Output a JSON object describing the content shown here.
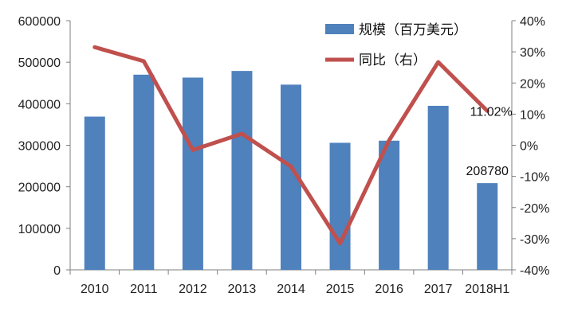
{
  "chart_data": {
    "type": "bar+line",
    "categories": [
      "2010",
      "2011",
      "2012",
      "2013",
      "2014",
      "2015",
      "2016",
      "2017",
      "2018H1"
    ],
    "series": [
      {
        "name": "规模（百万美元）",
        "type": "bar",
        "axis": "left",
        "color": "#4f81bd",
        "values": [
          369000,
          470000,
          463000,
          479000,
          446000,
          306000,
          311000,
          395000,
          208780
        ]
      },
      {
        "name": "同比（右）",
        "type": "line",
        "axis": "right",
        "color": "#c0504d",
        "values": [
          31.5,
          27.0,
          -1.5,
          3.7,
          -6.8,
          -31.5,
          1.6,
          26.7,
          11.02
        ]
      }
    ],
    "y_left": {
      "min": 0,
      "max": 600000,
      "ticks": [
        "0",
        "100000",
        "200000",
        "300000",
        "400000",
        "500000",
        "600000"
      ]
    },
    "y_right": {
      "min": -40,
      "max": 40,
      "ticks": [
        "-40%",
        "-30%",
        "-20%",
        "-10%",
        "0%",
        "10%",
        "20%",
        "30%",
        "40%"
      ]
    },
    "annotations": [
      {
        "text": "208780",
        "series": 0,
        "category": "2018H1"
      },
      {
        "text": "11.02%",
        "series": 1,
        "category": "2018H1"
      }
    ],
    "grid": false,
    "legend_position": "top-right",
    "title": "",
    "xlabel": "",
    "ylabel": ""
  }
}
